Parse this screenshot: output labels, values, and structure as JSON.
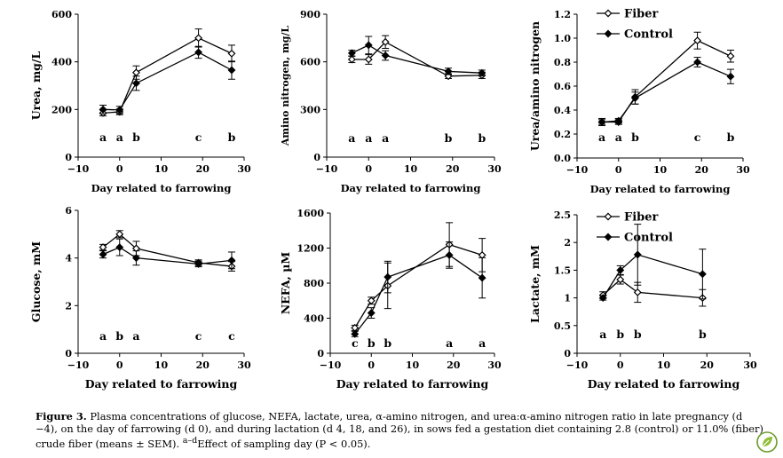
{
  "caption": {
    "label": "Figure 3.",
    "text": "Plasma concentrations of glucose, NEFA, lactate, urea, α-amino nitrogen, and urea:α-amino nitrogen ratio in late pregnancy (d −4), on the day of farrowing (d 0), and during lactation (d 4, 18, and 26), in sows fed a gestation diet containing 2.8 (control) or 11.0% (fiber) crude fiber (means ± SEM).",
    "sup": "a–d",
    "tail": "Effect of sampling day (P < 0.05)."
  },
  "colors": {
    "ink": "#000000",
    "logo_green": "#6a9a2a"
  },
  "chart_data": [
    {
      "type": "line",
      "ylabel": "Urea, mg/L",
      "xlabel": "Day related to farrowing",
      "xlim": [
        -10,
        30
      ],
      "xticks": [
        -10,
        0,
        10,
        20,
        30
      ],
      "xtick_labels": [
        "−10",
        "0",
        "10",
        "20",
        "30"
      ],
      "ylim": [
        0,
        600
      ],
      "yticks": [
        0,
        200,
        400,
        600
      ],
      "ytick_labels": [
        "0",
        "200",
        "400",
        "600"
      ],
      "x": [
        -4,
        0,
        4,
        19,
        27
      ],
      "series": [
        {
          "name": "Fiber",
          "marker": "open-diamond",
          "values": [
            185,
            190,
            355,
            500,
            435
          ],
          "errors": [
            12,
            12,
            28,
            38,
            35
          ]
        },
        {
          "name": "Control",
          "marker": "filled-diamond",
          "values": [
            200,
            198,
            310,
            440,
            365
          ],
          "errors": [
            18,
            15,
            30,
            25,
            38
          ]
        }
      ],
      "letters": [
        {
          "x": -4,
          "t": "a"
        },
        {
          "x": 0,
          "t": "a"
        },
        {
          "x": 4,
          "t": "b"
        },
        {
          "x": 19,
          "t": "c"
        },
        {
          "x": 27,
          "t": "b"
        }
      ],
      "legend": null
    },
    {
      "type": "line",
      "ylabel": "Amino nitrogen, mg/L",
      "xlabel": "Day related to farrowing",
      "xlim": [
        -10,
        30
      ],
      "xticks": [
        -10,
        0,
        10,
        20,
        30
      ],
      "xtick_labels": [
        "−10",
        "0",
        "10",
        "20",
        "30"
      ],
      "ylim": [
        0,
        900
      ],
      "yticks": [
        0,
        300,
        600,
        900
      ],
      "ytick_labels": [
        "0",
        "300",
        "600",
        "900"
      ],
      "x": [
        -4,
        0,
        4,
        19,
        27
      ],
      "series": [
        {
          "name": "Fiber",
          "marker": "open-diamond",
          "values": [
            615,
            615,
            725,
            510,
            515
          ],
          "errors": [
            20,
            30,
            40,
            15,
            20
          ]
        },
        {
          "name": "Control",
          "marker": "filled-diamond",
          "values": [
            655,
            705,
            640,
            540,
            530
          ],
          "errors": [
            18,
            55,
            30,
            20,
            18
          ]
        }
      ],
      "letters": [
        {
          "x": -4,
          "t": "a"
        },
        {
          "x": 0,
          "t": "a"
        },
        {
          "x": 4,
          "t": "a"
        },
        {
          "x": 19,
          "t": "b"
        },
        {
          "x": 27,
          "t": "b"
        }
      ],
      "legend": null
    },
    {
      "type": "line",
      "ylabel": "Urea/amino nitrogen",
      "xlabel": "Day related to farrowing",
      "xlim": [
        -10,
        30
      ],
      "xticks": [
        -10,
        0,
        10,
        20,
        30
      ],
      "xtick_labels": [
        "−10",
        "0",
        "10",
        "20",
        "30"
      ],
      "ylim": [
        0,
        1.2
      ],
      "yticks": [
        0,
        0.2,
        0.4,
        0.6,
        0.8,
        1.0,
        1.2
      ],
      "ytick_labels": [
        "0.0",
        "0.2",
        "0.4",
        "0.6",
        "0.8",
        "1.0",
        "1.2"
      ],
      "x": [
        -4,
        0,
        4,
        19,
        27
      ],
      "series": [
        {
          "name": "Fiber",
          "marker": "open-diamond",
          "values": [
            0.3,
            0.3,
            0.51,
            0.98,
            0.85
          ],
          "errors": [
            0.02,
            0.02,
            0.06,
            0.07,
            0.05
          ]
        },
        {
          "name": "Control",
          "marker": "filled-diamond",
          "values": [
            0.3,
            0.31,
            0.5,
            0.8,
            0.68
          ],
          "errors": [
            0.03,
            0.02,
            0.05,
            0.04,
            0.06
          ]
        }
      ],
      "letters": [
        {
          "x": -4,
          "t": "a"
        },
        {
          "x": 0,
          "t": "a"
        },
        {
          "x": 4,
          "t": "b"
        },
        {
          "x": 19,
          "t": "c"
        },
        {
          "x": 27,
          "t": "b"
        }
      ],
      "legend": "top-center"
    },
    {
      "type": "line",
      "ylabel": "Glucose, mM",
      "xlabel": "Day related to farrowing",
      "xlim": [
        -10,
        30
      ],
      "xticks": [
        -10,
        0,
        10,
        20,
        30
      ],
      "xtick_labels": [
        "−10",
        "0",
        "10",
        "20",
        "30"
      ],
      "ylim": [
        0,
        6
      ],
      "yticks": [
        0,
        2,
        4,
        6
      ],
      "ytick_labels": [
        "0",
        "2",
        "4",
        "6"
      ],
      "x": [
        -4,
        0,
        4,
        19,
        27
      ],
      "series": [
        {
          "name": "Fiber",
          "marker": "open-diamond",
          "values": [
            4.45,
            5.0,
            4.4,
            3.8,
            3.65
          ],
          "errors": [
            0.12,
            0.15,
            0.3,
            0.12,
            0.2
          ]
        },
        {
          "name": "Control",
          "marker": "filled-diamond",
          "values": [
            4.15,
            4.45,
            4.0,
            3.75,
            3.9
          ],
          "errors": [
            0.15,
            0.35,
            0.3,
            0.12,
            0.35
          ]
        }
      ],
      "letters": [
        {
          "x": -4,
          "t": "a"
        },
        {
          "x": 0,
          "t": "b"
        },
        {
          "x": 4,
          "t": "a"
        },
        {
          "x": 19,
          "t": "c"
        },
        {
          "x": 27,
          "t": "c"
        }
      ],
      "legend": null
    },
    {
      "type": "line",
      "ylabel": "NEFA, µM",
      "xlabel": "Day related to farrowing",
      "xlim": [
        -10,
        30
      ],
      "xticks": [
        -10,
        0,
        10,
        20,
        30
      ],
      "xtick_labels": [
        "−10",
        "0",
        "10",
        "20",
        "30"
      ],
      "ylim": [
        0,
        1600
      ],
      "yticks": [
        0,
        400,
        800,
        1200,
        1600
      ],
      "ytick_labels": [
        "0",
        "400",
        "800",
        "1200",
        "1600"
      ],
      "x": [
        -4,
        0,
        4,
        19,
        27
      ],
      "series": [
        {
          "name": "Fiber",
          "marker": "open-diamond",
          "values": [
            290,
            600,
            770,
            1240,
            1120
          ],
          "errors": [
            30,
            40,
            260,
            250,
            190
          ]
        },
        {
          "name": "Control",
          "marker": "filled-diamond",
          "values": [
            220,
            460,
            870,
            1120,
            860
          ],
          "errors": [
            30,
            60,
            180,
            150,
            230
          ]
        }
      ],
      "letters": [
        {
          "x": -4,
          "t": "c"
        },
        {
          "x": 0,
          "t": "b"
        },
        {
          "x": 4,
          "t": "b"
        },
        {
          "x": 19,
          "t": "a"
        },
        {
          "x": 27,
          "t": "a"
        }
      ],
      "legend": null
    },
    {
      "type": "line",
      "ylabel": "Lactate, mM",
      "xlabel": "Day related to farrowing",
      "xlim": [
        -10,
        30
      ],
      "xticks": [
        -10,
        0,
        10,
        20,
        30
      ],
      "xtick_labels": [
        "−10",
        "0",
        "10",
        "20",
        "30"
      ],
      "ylim": [
        0,
        2.5
      ],
      "yticks": [
        0,
        0.5,
        1,
        1.5,
        2,
        2.5
      ],
      "ytick_labels": [
        "0",
        "0.5",
        "1",
        "1.5",
        "2",
        "2.5"
      ],
      "x": [
        -4,
        0,
        4,
        19
      ],
      "series": [
        {
          "name": "Fiber",
          "marker": "open-diamond",
          "values": [
            1.05,
            1.33,
            1.1,
            1.0
          ],
          "errors": [
            0.06,
            0.08,
            0.18,
            0.15
          ]
        },
        {
          "name": "Control",
          "marker": "filled-diamond",
          "values": [
            1.0,
            1.5,
            1.78,
            1.43
          ],
          "errors": [
            0.04,
            0.08,
            0.55,
            0.45
          ]
        }
      ],
      "letters": [
        {
          "x": -4,
          "t": "a"
        },
        {
          "x": 0,
          "t": "b"
        },
        {
          "x": 4,
          "t": "b"
        },
        {
          "x": 19,
          "t": "b"
        }
      ],
      "legend": "top-center"
    }
  ]
}
